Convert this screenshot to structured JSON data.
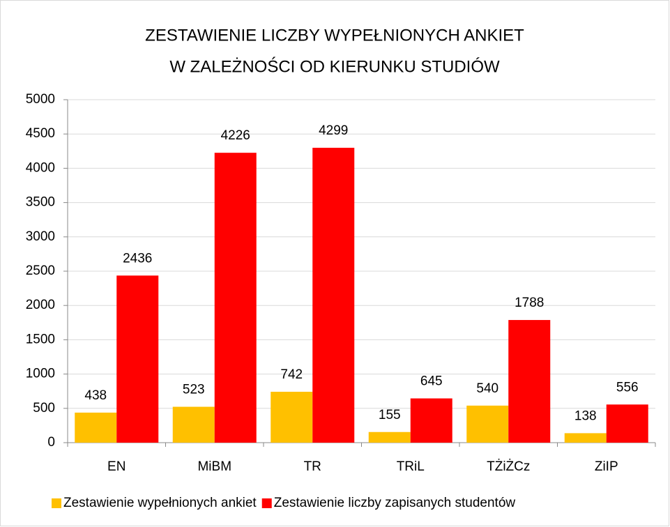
{
  "chart_data": {
    "type": "bar",
    "title": [
      "ZESTAWIENIE LICZBY WYPEŁNIONYCH ANKIET",
      "W ZALEŻNOŚCI OD KIERUNKU STUDIÓW"
    ],
    "categories": [
      "EN",
      "MiBM",
      "TR",
      "TRiL",
      "TŻiŻCz",
      "ZiIP"
    ],
    "series": [
      {
        "name": "Zestawienie wypełnionych ankiet",
        "color": "#ffc000",
        "values": [
          438,
          523,
          742,
          155,
          540,
          138
        ]
      },
      {
        "name": "Zestawienie liczby zapisanych studentów",
        "color": "#ff0000",
        "values": [
          2436,
          4226,
          4299,
          645,
          1788,
          556
        ]
      }
    ],
    "ylim": [
      0,
      5000
    ],
    "yticks": [
      0,
      500,
      1000,
      1500,
      2000,
      2500,
      3000,
      3500,
      4000,
      4500,
      5000
    ],
    "grid": true,
    "legend": "bottom"
  }
}
